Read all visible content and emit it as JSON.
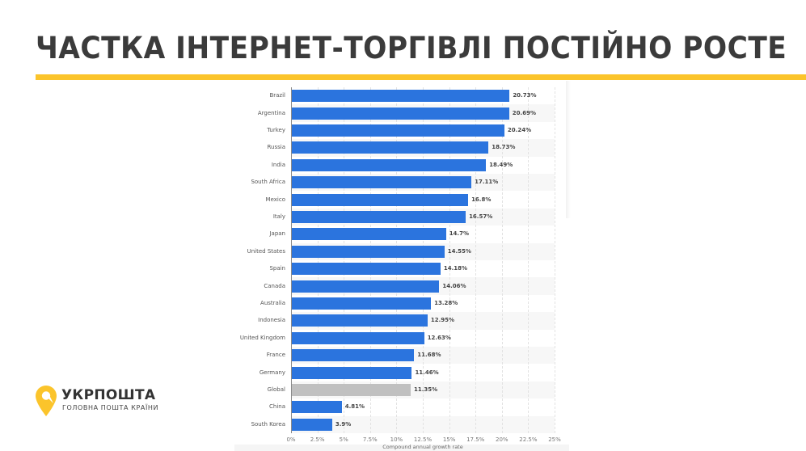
{
  "slide": {
    "title": "ЧАСТКА ІНТЕРНЕТ-ТОРГІВЛІ ПОСТІЙНО РОСТЕ",
    "accent_color": "#fbc42b"
  },
  "logo": {
    "name": "УКРПОШТА",
    "tagline": "ГОЛОВНА ПОШТА КРАЇНИ",
    "pin_color": "#fbc42b"
  },
  "chart_data": {
    "type": "bar",
    "orientation": "horizontal",
    "title": "",
    "xlabel": "Compound annual growth rate",
    "ylabel": "",
    "xlim": [
      0,
      25
    ],
    "x_ticks": [
      "0%",
      "2.5%",
      "5%",
      "7.5%",
      "10%",
      "12.5%",
      "15%",
      "17.5%",
      "20%",
      "22.5%",
      "25%"
    ],
    "grid": true,
    "legend": null,
    "categories": [
      "Brazil",
      "Argentina",
      "Turkey",
      "Russia",
      "India",
      "South Africa",
      "Mexico",
      "Italy",
      "Japan",
      "United States",
      "Spain",
      "Canada",
      "Australia",
      "Indonesia",
      "United Kingdom",
      "France",
      "Germany",
      "Global",
      "China",
      "South Korea"
    ],
    "values": [
      20.73,
      20.69,
      20.24,
      18.73,
      18.49,
      17.11,
      16.8,
      16.57,
      14.7,
      14.55,
      14.18,
      14.06,
      13.28,
      12.95,
      12.63,
      11.68,
      11.46,
      11.35,
      4.81,
      3.9
    ],
    "value_labels": [
      "20.73%",
      "20.69%",
      "20.24%",
      "18.73%",
      "18.49%",
      "17.11%",
      "16.8%",
      "16.57%",
      "14.7%",
      "14.55%",
      "14.18%",
      "14.06%",
      "13.28%",
      "12.95%",
      "12.63%",
      "11.68%",
      "11.46%",
      "11.35%",
      "4.81%",
      "3.9%"
    ],
    "colors": {
      "default": "#2b74de",
      "highlight": "#c0c0c0",
      "highlight_category": "Global"
    }
  }
}
